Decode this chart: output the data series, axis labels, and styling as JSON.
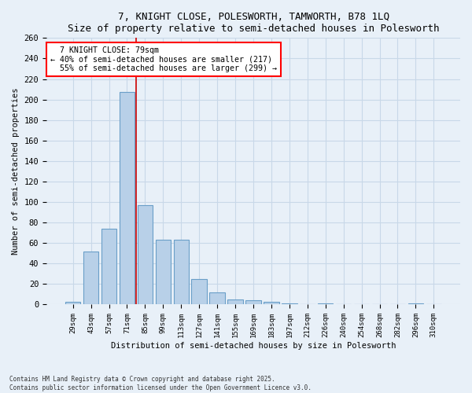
{
  "title": "7, KNIGHT CLOSE, POLESWORTH, TAMWORTH, B78 1LQ",
  "subtitle": "Size of property relative to semi-detached houses in Polesworth",
  "xlabel": "Distribution of semi-detached houses by size in Polesworth",
  "ylabel": "Number of semi-detached properties",
  "categories": [
    "29sqm",
    "43sqm",
    "57sqm",
    "71sqm",
    "85sqm",
    "99sqm",
    "113sqm",
    "127sqm",
    "141sqm",
    "155sqm",
    "169sqm",
    "183sqm",
    "197sqm",
    "212sqm",
    "226sqm",
    "240sqm",
    "254sqm",
    "268sqm",
    "282sqm",
    "296sqm",
    "310sqm"
  ],
  "values": [
    3,
    52,
    74,
    207,
    97,
    63,
    63,
    25,
    12,
    5,
    4,
    3,
    1,
    0,
    1,
    0,
    0,
    0,
    0,
    1,
    0
  ],
  "bar_color": "#b8d0e8",
  "bar_edge_color": "#6a9fc8",
  "property_label": "7 KNIGHT CLOSE: 79sqm",
  "pct_smaller": 40,
  "count_smaller": 217,
  "pct_larger": 55,
  "count_larger": 299,
  "vline_index": 3,
  "ylim": [
    0,
    260
  ],
  "yticks": [
    0,
    20,
    40,
    60,
    80,
    100,
    120,
    140,
    160,
    180,
    200,
    220,
    240,
    260
  ],
  "background_color": "#e8f0f8",
  "grid_color": "#c8d8e8",
  "vline_color": "#cc0000",
  "footer_line1": "Contains HM Land Registry data © Crown copyright and database right 2025.",
  "footer_line2": "Contains public sector information licensed under the Open Government Licence v3.0."
}
